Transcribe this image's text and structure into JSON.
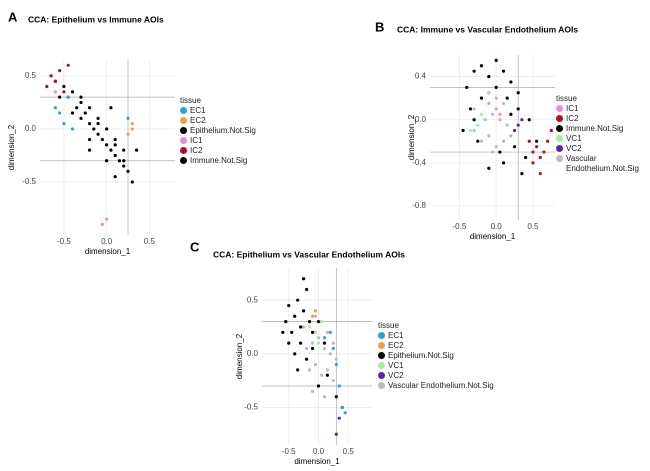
{
  "chart_data": [
    {
      "type": "scatter",
      "panel_label": "A",
      "title": "CCA: Epithelium vs Immune AOIs",
      "x_label": "dimension_1",
      "y_label": "dimension_2",
      "legend_title": "tissue",
      "xlim": [
        -0.78,
        0.8
      ],
      "ylim": [
        -1.0,
        0.65
      ],
      "xticks": [
        -0.5,
        {
          "value": 0,
          "label": "0.0"
        },
        0.5
      ],
      "yticks": [
        -0.5,
        {
          "value": 0,
          "label": "0.0"
        },
        0.5
      ],
      "grid": true,
      "hlines": [
        0.3,
        -0.3
      ],
      "vlines": [
        0.25
      ],
      "series": [
        {
          "name": "EC1",
          "color": "#29a3e0",
          "x": [
            -0.55,
            -0.5,
            -0.45,
            -0.6,
            -0.4,
            0.25
          ],
          "values": [
            0.15,
            0.05,
            0.3,
            0.2,
            0.0,
            0.1
          ]
        },
        {
          "name": "EC2",
          "color": "#f0a040",
          "x": [
            0.3,
            0.25,
            0.3
          ],
          "values": [
            0.0,
            -0.05,
            0.05
          ]
        },
        {
          "name": "Epithelium.Not.Sig",
          "color": "#000000",
          "x": [
            -0.3,
            -0.1,
            0.1,
            0.2,
            0.05,
            -0.2
          ],
          "values": [
            0.25,
            0.05,
            -0.15,
            -0.3,
            0.2,
            -0.2
          ]
        },
        {
          "name": "IC1",
          "color": "#f08ad0",
          "x": [
            -0.05,
            0.0,
            -0.6
          ],
          "values": [
            -0.9,
            -0.85,
            0.35
          ]
        },
        {
          "name": "IC2",
          "color": "#b01020",
          "x": [
            -0.7,
            -0.65,
            -0.6,
            -0.55,
            -0.5,
            -0.45
          ],
          "values": [
            0.4,
            0.5,
            0.45,
            0.55,
            0.35,
            0.6
          ]
        },
        {
          "name": "Immune.Not.Sig",
          "color": "#000000",
          "x": [
            -0.6,
            -0.5,
            -0.45,
            -0.4,
            -0.35,
            -0.3,
            -0.3,
            -0.25,
            -0.2,
            -0.2,
            -0.15,
            -0.1,
            -0.1,
            -0.05,
            0,
            0,
            0.05,
            0.1,
            0.1,
            0.15,
            0.2,
            0.2,
            0.25,
            -0.55,
            -0.4,
            -0.2,
            0,
            0.1,
            0.3,
            0.35
          ],
          "values": [
            0.45,
            0.4,
            0.3,
            0.35,
            0.2,
            0.3,
            0.1,
            0.15,
            0.05,
            0.2,
            0,
            -0.05,
            0.1,
            -0.1,
            -0.15,
            0,
            -0.2,
            -0.25,
            -0.1,
            -0.3,
            -0.35,
            -0.2,
            -0.4,
            0.3,
            0.15,
            -0.1,
            -0.3,
            -0.45,
            -0.5,
            -0.2
          ]
        }
      ]
    },
    {
      "type": "scatter",
      "panel_label": "B",
      "title": "CCA: Immune vs Vascular Endothelium AOIs",
      "x_label": "dimension_1",
      "y_label": "dimension_2",
      "legend_title": "tissue",
      "xlim": [
        -0.9,
        0.8
      ],
      "ylim": [
        -0.93,
        0.6
      ],
      "xticks": [
        -0.5,
        {
          "value": 0,
          "label": "0.0"
        },
        0.5
      ],
      "yticks": [
        -0.8,
        -0.4,
        {
          "value": 0,
          "label": "0.0"
        },
        0.4
      ],
      "grid": true,
      "hlines": [
        0.3,
        -0.3
      ],
      "vlines": [
        0.3
      ],
      "series": [
        {
          "name": "IC1",
          "color": "#f08ad0",
          "x": [
            -0.1,
            0.0,
            0.05
          ],
          "values": [
            0.15,
            0.1,
            0.05
          ]
        },
        {
          "name": "IC2",
          "color": "#b01020",
          "x": [
            0.45,
            0.5,
            0.55,
            0.6,
            0.65,
            0.7,
            0.75,
            0.5,
            0.6
          ],
          "values": [
            -0.2,
            -0.3,
            -0.25,
            -0.35,
            -0.3,
            -0.2,
            -0.1,
            -0.4,
            -0.5
          ]
        },
        {
          "name": "Immune.Not.Sig",
          "color": "#000000",
          "x": [
            -0.4,
            -0.3,
            -0.2,
            -0.1,
            0,
            0.1,
            0.2,
            0.3,
            -0.35,
            -0.2,
            0,
            0.15,
            0.3,
            0.45,
            -0.45,
            -0.25,
            0.05,
            0.25,
            0.4,
            0.55,
            -0.1,
            0.1,
            0.35,
            -0.3,
            0.2
          ],
          "values": [
            0.3,
            0.45,
            0.5,
            0.4,
            0.55,
            0.45,
            0.35,
            0.25,
            0.1,
            0.2,
            0.3,
            0.2,
            0.1,
            0,
            -0.1,
            -0.2,
            -0.3,
            -0.25,
            -0.35,
            -0.2,
            -0.45,
            -0.4,
            -0.5,
            0,
            0.05
          ]
        },
        {
          "name": "VC1",
          "color": "#a0f0a0",
          "x": [
            -0.3,
            -0.25,
            -0.35,
            -0.2
          ],
          "values": [
            0.0,
            -0.05,
            -0.1,
            0.05
          ]
        },
        {
          "name": "VC2",
          "color": "#6020b0",
          "x": [
            0.3,
            0.35,
            0.25
          ],
          "values": [
            -0.05,
            0.0,
            -0.1
          ]
        },
        {
          "name": "Vascular Endothelium.Not.Sig",
          "color": "#bbbbbb",
          "x": [
            -0.3,
            -0.2,
            -0.1,
            0,
            0.1,
            0.2,
            -0.25,
            -0.15,
            -0.05,
            0.05,
            0.15,
            -0.2,
            -0.1,
            0,
            0.1,
            -0.3,
            0.2,
            -0.05
          ],
          "values": [
            0.1,
            0.2,
            0.25,
            0.2,
            0.15,
            0.05,
            -0.05,
            0,
            0.05,
            0,
            -0.05,
            -0.2,
            -0.15,
            -0.25,
            -0.2,
            -0.1,
            -0.15,
            -0.3
          ]
        }
      ]
    },
    {
      "type": "scatter",
      "panel_label": "C",
      "title": "CCA: Epithelium vs Vascular Endothelium AOIs",
      "x_label": "dimension_1",
      "y_label": "dimension_2",
      "legend_title": "tissue",
      "xlim": [
        -0.95,
        0.9
      ],
      "ylim": [
        -0.85,
        0.8
      ],
      "xticks": [
        -0.5,
        {
          "value": 0,
          "label": "0.0"
        },
        0.5
      ],
      "yticks": [
        -0.5,
        {
          "value": 0,
          "label": "0.0"
        },
        0.5
      ],
      "grid": true,
      "hlines": [
        0.3,
        -0.3
      ],
      "vlines": [
        0.3
      ],
      "series": [
        {
          "name": "EC1",
          "color": "#29a3e0",
          "x": [
            0.1,
            0.2,
            0.25,
            0.3,
            0.35,
            0.4,
            0.45
          ],
          "values": [
            0.15,
            0.2,
            0.05,
            -0.1,
            -0.3,
            -0.5,
            -0.55
          ]
        },
        {
          "name": "EC2",
          "color": "#f0a040",
          "x": [
            -0.1,
            -0.05
          ],
          "values": [
            0.35,
            0.4
          ]
        },
        {
          "name": "Epithelium.Not.Sig",
          "color": "#000000",
          "x": [
            -0.55,
            -0.5,
            -0.45,
            -0.4,
            -0.35,
            -0.3,
            -0.25,
            -0.2,
            -0.15,
            -0.1,
            -0.5,
            -0.4,
            -0.3,
            -0.2,
            -0.1,
            0,
            0.1,
            -0.35,
            -0.25,
            -0.6,
            0,
            0.15,
            0.3,
            0.4
          ],
          "values": [
            0.3,
            0.45,
            0.2,
            0.35,
            0.5,
            0.25,
            0.4,
            0.6,
            0.3,
            0.2,
            0.1,
            0.0,
            0.1,
            -0.05,
            0.05,
            0.3,
            0.1,
            -0.15,
            0.7,
            0.2,
            -0.3,
            -0.2,
            -0.4,
            -0.5
          ]
        },
        {
          "name": "VC1",
          "color": "#a0f0a0",
          "x": [
            -0.15,
            -0.05,
            0.05,
            0.0
          ],
          "values": [
            0.25,
            0.2,
            0.3,
            0.1
          ]
        },
        {
          "name": "VC2",
          "color": "#6020b0",
          "x": [
            0.3,
            0.35
          ],
          "values": [
            -0.75,
            -0.6
          ]
        },
        {
          "name": "Vascular Endothelium.Not.Sig",
          "color": "#bbbbbb",
          "x": [
            -0.25,
            -0.15,
            -0.05,
            0.05,
            0.15,
            0.25,
            -0.2,
            -0.1,
            0,
            0.1,
            0.2,
            0.3,
            -0.15,
            -0.05,
            0.05,
            0.15,
            0.25,
            -0.1,
            0,
            0.1
          ],
          "values": [
            0.25,
            0.3,
            0.35,
            0.3,
            0.2,
            0.1,
            0.05,
            0.1,
            0.15,
            0.05,
            0,
            -0.05,
            -0.15,
            -0.1,
            -0.2,
            -0.15,
            -0.25,
            -0.35,
            -0.3,
            -0.4
          ]
        }
      ]
    }
  ]
}
